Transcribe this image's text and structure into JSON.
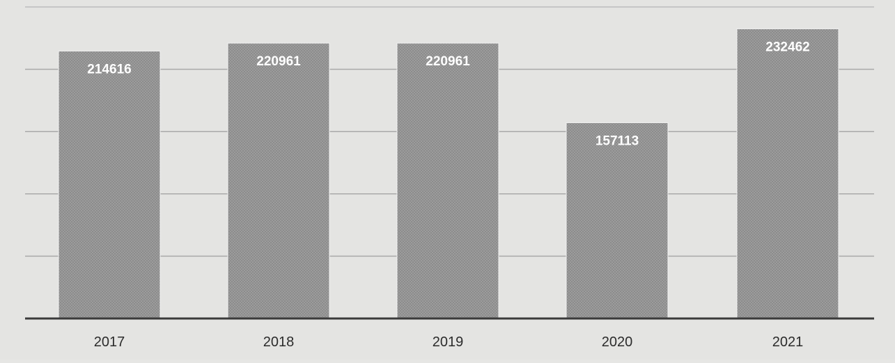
{
  "chart_data": {
    "type": "bar",
    "title": "",
    "xlabel": "",
    "ylabel": "",
    "categories": [
      "2017",
      "2018",
      "2019",
      "2020",
      "2021"
    ],
    "series": [
      {
        "values": [
          214616,
          220961,
          220961,
          157113,
          232462
        ],
        "data_labels": [
          "214616",
          "220961",
          "220961",
          "157113",
          "232462"
        ]
      }
    ],
    "ylim": [
      0,
      250000
    ],
    "gridlines": [
      50000,
      100000,
      150000,
      200000,
      250000
    ],
    "grid": true,
    "legend": "none",
    "colors": {
      "bar": "#9a9a9a",
      "bar_pattern": "#8a8a8a",
      "grid": "#a9a9a9",
      "axis": "#3a3a3a",
      "background": "#e4e4e2",
      "data_label": "#ffffff",
      "tick_label": "#2b2b2b"
    }
  }
}
